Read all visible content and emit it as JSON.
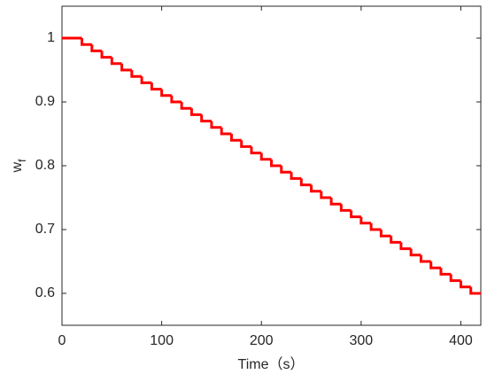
{
  "chart_data": {
    "type": "step",
    "step": "post",
    "x": [
      0,
      20,
      30,
      40,
      50,
      60,
      70,
      80,
      90,
      100,
      110,
      120,
      130,
      140,
      150,
      160,
      170,
      180,
      190,
      200,
      210,
      220,
      230,
      240,
      250,
      260,
      270,
      280,
      290,
      300,
      310,
      320,
      330,
      340,
      350,
      360,
      370,
      380,
      390,
      400,
      410
    ],
    "values": [
      1,
      0.99,
      0.98,
      0.97,
      0.96,
      0.95,
      0.94,
      0.93,
      0.92,
      0.91,
      0.9,
      0.89,
      0.88,
      0.87,
      0.86,
      0.85,
      0.84,
      0.83,
      0.82,
      0.81,
      0.8,
      0.79,
      0.78,
      0.77,
      0.76,
      0.75,
      0.74,
      0.73,
      0.72,
      0.71,
      0.7,
      0.69,
      0.68,
      0.67,
      0.66,
      0.65,
      0.64,
      0.63,
      0.62,
      0.61,
      0.6
    ],
    "color": "#ff0000",
    "xlabel": "Time（s）",
    "ylabel": "w",
    "ylabel_sub": "f",
    "xlim": [
      0,
      420
    ],
    "ylim": [
      0.55,
      1.05
    ],
    "xticks": [
      0,
      100,
      200,
      300,
      400
    ],
    "yticks": [
      0.6,
      0.7,
      0.8,
      0.9,
      1
    ],
    "grid": false
  }
}
